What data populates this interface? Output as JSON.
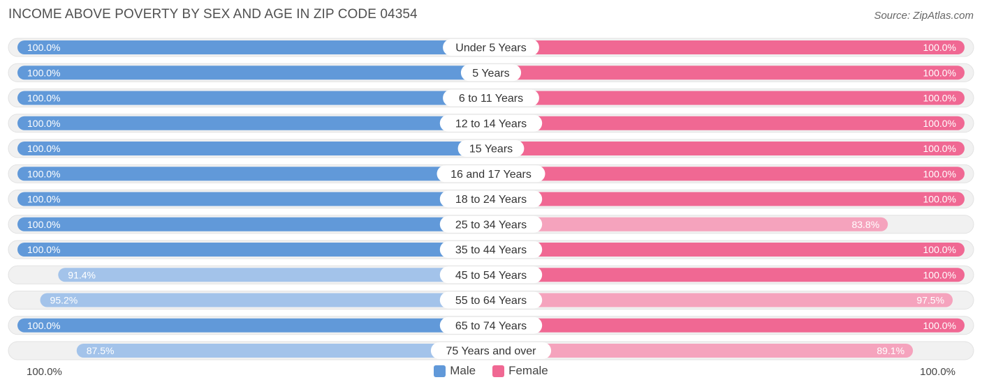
{
  "title": "INCOME ABOVE POVERTY BY SEX AND AGE IN ZIP CODE 04354",
  "source": "Source: ZipAtlas.com",
  "colors": {
    "male": "#6199d9",
    "male_light": "#a3c3ea",
    "female": "#f06893",
    "female_light": "#f5a3bd",
    "track": "#f1f1f1"
  },
  "axis": {
    "left_label": "100.0%",
    "right_label": "100.0%"
  },
  "legend": {
    "male": "Male",
    "female": "Female"
  },
  "chart_data": {
    "type": "bar",
    "title": "INCOME ABOVE POVERTY BY SEX AND AGE IN ZIP CODE 04354",
    "categories": [
      "Under 5 Years",
      "5 Years",
      "6 to 11 Years",
      "12 to 14 Years",
      "15 Years",
      "16 and 17 Years",
      "18 to 24 Years",
      "25 to 34 Years",
      "35 to 44 Years",
      "45 to 54 Years",
      "55 to 64 Years",
      "65 to 74 Years",
      "75 Years and over"
    ],
    "series": [
      {
        "name": "Male",
        "values": [
          100.0,
          100.0,
          100.0,
          100.0,
          100.0,
          100.0,
          100.0,
          100.0,
          100.0,
          91.4,
          95.2,
          100.0,
          87.5
        ],
        "labels": [
          "100.0%",
          "100.0%",
          "100.0%",
          "100.0%",
          "100.0%",
          "100.0%",
          "100.0%",
          "100.0%",
          "100.0%",
          "91.4%",
          "95.2%",
          "100.0%",
          "87.5%"
        ]
      },
      {
        "name": "Female",
        "values": [
          100.0,
          100.0,
          100.0,
          100.0,
          100.0,
          100.0,
          100.0,
          83.8,
          100.0,
          100.0,
          97.5,
          100.0,
          89.1
        ],
        "labels": [
          "100.0%",
          "100.0%",
          "100.0%",
          "100.0%",
          "100.0%",
          "100.0%",
          "100.0%",
          "83.8%",
          "100.0%",
          "100.0%",
          "97.5%",
          "100.0%",
          "89.1%"
        ]
      }
    ],
    "xlim": [
      0,
      100
    ],
    "legend_position": "bottom-center",
    "grid": false
  }
}
